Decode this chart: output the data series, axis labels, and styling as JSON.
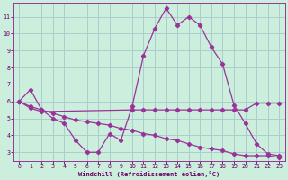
{
  "bg_color": "#cceedd",
  "grid_color": "#aacccc",
  "line_color": "#993399",
  "xlabel": "Windchill (Refroidissement éolien,°C)",
  "xlabel_color": "#660066",
  "tick_color": "#660066",
  "xlim": [
    -0.5,
    23.5
  ],
  "ylim": [
    2.5,
    11.8
  ],
  "xticks": [
    0,
    1,
    2,
    3,
    4,
    5,
    6,
    7,
    8,
    9,
    10,
    11,
    12,
    13,
    14,
    15,
    16,
    17,
    18,
    19,
    20,
    21,
    22,
    23
  ],
  "yticks": [
    3,
    4,
    5,
    6,
    7,
    8,
    9,
    10,
    11
  ],
  "line1_x": [
    0,
    1,
    2,
    3,
    4,
    5,
    6,
    7,
    8,
    9,
    10,
    11,
    12,
    13,
    14,
    15,
    16,
    17,
    18,
    19,
    20,
    21,
    22,
    23
  ],
  "line1_y": [
    6.0,
    6.7,
    5.5,
    5.0,
    4.7,
    3.7,
    3.0,
    3.0,
    4.1,
    3.7,
    5.7,
    8.7,
    10.3,
    11.5,
    10.5,
    11.0,
    10.5,
    9.2,
    8.2,
    5.8,
    4.7,
    3.5,
    2.9,
    2.8
  ],
  "line2_x": [
    0,
    1,
    2,
    10,
    11,
    12,
    13,
    14,
    15,
    16,
    17,
    18,
    19,
    20,
    21,
    22,
    23
  ],
  "line2_y": [
    6.0,
    5.6,
    5.4,
    5.5,
    5.5,
    5.5,
    5.5,
    5.5,
    5.5,
    5.5,
    5.5,
    5.5,
    5.5,
    5.5,
    5.9,
    5.9,
    5.9
  ],
  "line3_x": [
    0,
    1,
    2,
    3,
    4,
    5,
    6,
    7,
    8,
    9,
    10,
    11,
    12,
    13,
    14,
    15,
    16,
    17,
    18,
    19,
    20,
    21,
    22,
    23
  ],
  "line3_y": [
    6.0,
    5.7,
    5.5,
    5.3,
    5.1,
    4.9,
    4.8,
    4.7,
    4.6,
    4.4,
    4.3,
    4.1,
    4.0,
    3.8,
    3.7,
    3.5,
    3.3,
    3.2,
    3.1,
    2.9,
    2.8,
    2.8,
    2.8,
    2.7
  ]
}
